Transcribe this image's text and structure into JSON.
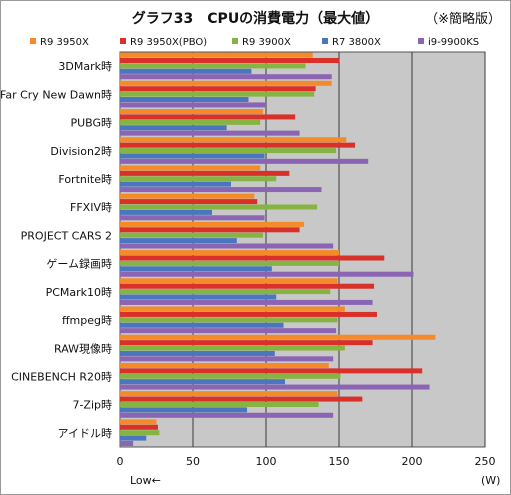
{
  "header": {
    "title": "グラフ33　CPUの消費電力（最大値）",
    "note": "（※簡略版）"
  },
  "footer": {
    "low_label": "Low←",
    "unit_label": "(W)"
  },
  "colors": {
    "plot_bg": "#c8c8c8",
    "grid": "#3a3a3a"
  },
  "chart_data": {
    "type": "bar",
    "orientation": "horizontal",
    "title": "グラフ33　CPUの消費電力（最大値）",
    "xlabel": "",
    "ylabel": "",
    "xlim": [
      0,
      250
    ],
    "xticks": [
      0,
      50,
      100,
      150,
      200,
      250
    ],
    "grid": true,
    "legend_position": "top",
    "categories": [
      "3DMark時",
      "Far Cry New Dawn時",
      "PUBG時",
      "Division2時",
      "Fortnite時",
      "FFXIV時",
      "PROJECT CARS 2",
      "ゲーム録画時",
      "PCMark10時",
      "ffmpeg時",
      "RAW現像時",
      "CINEBENCH R20時",
      "7-Zip時",
      "アイドル時"
    ],
    "series": [
      {
        "name": "R9 3950X",
        "color": "#f58a28",
        "values": [
          132,
          145,
          98,
          155,
          96,
          92,
          126,
          150,
          149,
          154,
          216,
          143,
          149,
          25
        ]
      },
      {
        "name": "R9 3950X(PBO)",
        "color": "#d9312a",
        "values": [
          150,
          134,
          120,
          161,
          116,
          94,
          123,
          181,
          174,
          176,
          173,
          207,
          166,
          26
        ]
      },
      {
        "name": "R9 3900X",
        "color": "#86b442",
        "values": [
          127,
          133,
          96,
          148,
          107,
          135,
          98,
          150,
          144,
          149,
          154,
          151,
          136,
          27
        ]
      },
      {
        "name": "R7 3800X",
        "color": "#4a76c0",
        "values": [
          90,
          88,
          73,
          99,
          76,
          63,
          80,
          104,
          107,
          112,
          106,
          113,
          87,
          18
        ]
      },
      {
        "name": "i9-9900KS",
        "color": "#8b65b4",
        "values": [
          145,
          100,
          123,
          170,
          138,
          99,
          146,
          201,
          173,
          148,
          146,
          212,
          146,
          9
        ]
      }
    ]
  }
}
